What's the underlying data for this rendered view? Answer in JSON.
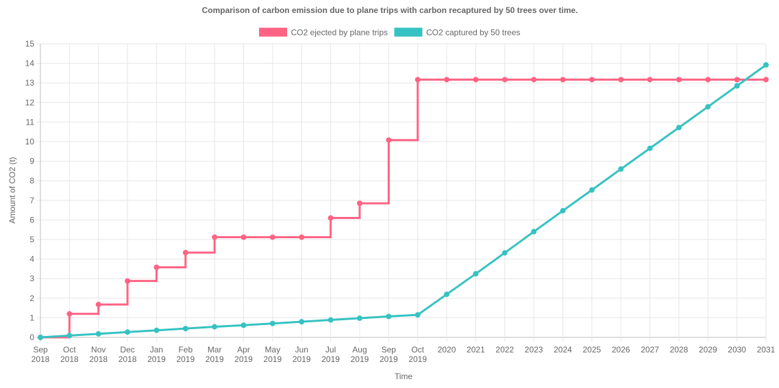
{
  "chart_data": {
    "type": "line",
    "title": "Comparison of carbon emission due to plane trips with carbon recaptured by 50 trees over time.",
    "xlabel": "Time",
    "ylabel": "Amount of CO2 (t)",
    "ylim": [
      0,
      15
    ],
    "yticks": [
      "0",
      "1",
      "2",
      "3",
      "4",
      "5",
      "6",
      "7",
      "8",
      "9",
      "10",
      "11",
      "12",
      "13",
      "14",
      "15"
    ],
    "categories": [
      [
        "Sep",
        "2018"
      ],
      [
        "Oct",
        "2018"
      ],
      [
        "Nov",
        "2018"
      ],
      [
        "Dec",
        "2018"
      ],
      [
        "Jan",
        "2019"
      ],
      [
        "Feb",
        "2019"
      ],
      [
        "Mar",
        "2019"
      ],
      [
        "Apr",
        "2019"
      ],
      [
        "May",
        "2019"
      ],
      [
        "Jun",
        "2019"
      ],
      [
        "Jul",
        "2019"
      ],
      [
        "Aug",
        "2019"
      ],
      [
        "Sep",
        "2019"
      ],
      [
        "Oct",
        "2019"
      ],
      [
        "2020"
      ],
      [
        "2021"
      ],
      [
        "2022"
      ],
      [
        "2023"
      ],
      [
        "2024"
      ],
      [
        "2025"
      ],
      [
        "2026"
      ],
      [
        "2027"
      ],
      [
        "2028"
      ],
      [
        "2029"
      ],
      [
        "2030"
      ],
      [
        "2031"
      ]
    ],
    "grid": true,
    "legend_position": "top",
    "series": [
      {
        "name": "CO2 ejected by plane trips",
        "color": "#ff6384",
        "stepped": true,
        "values": [
          0,
          1.2,
          1.68,
          2.88,
          3.58,
          4.33,
          5.12,
          5.12,
          5.12,
          5.12,
          6.1,
          6.85,
          10.08,
          13.17,
          13.17,
          13.17,
          13.17,
          13.17,
          13.17,
          13.17,
          13.17,
          13.17,
          13.17,
          13.17,
          13.17,
          13.17
        ]
      },
      {
        "name": "CO2 captured by 50 trees",
        "color": "#36c2c2",
        "stepped": false,
        "values": [
          0,
          0.09,
          0.18,
          0.27,
          0.36,
          0.45,
          0.54,
          0.62,
          0.71,
          0.8,
          0.89,
          0.98,
          1.07,
          1.15,
          2.2,
          3.25,
          4.32,
          5.4,
          6.47,
          7.53,
          8.6,
          9.66,
          10.72,
          11.78,
          12.85,
          13.92
        ]
      }
    ]
  }
}
